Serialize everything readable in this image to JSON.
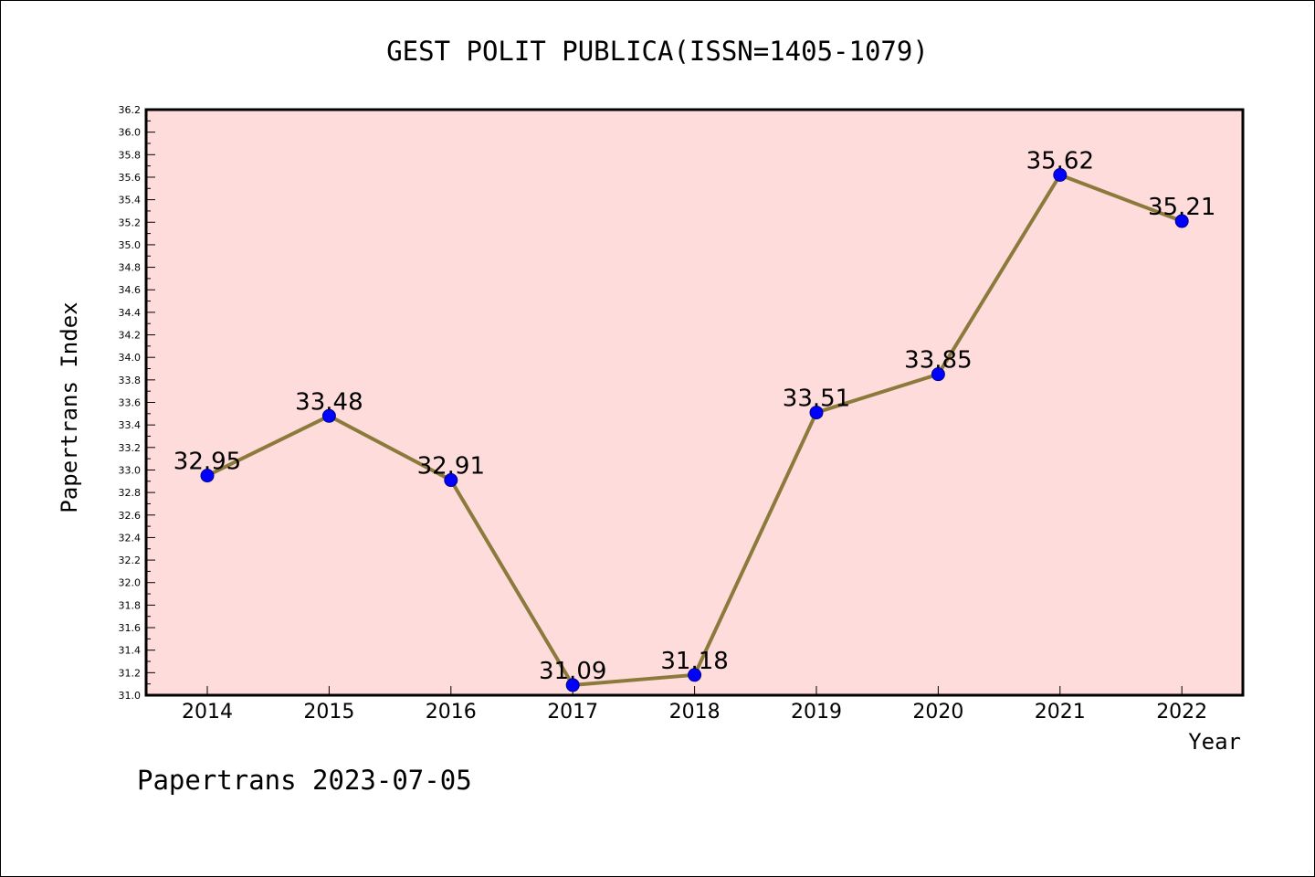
{
  "chart_data": {
    "type": "line",
    "title": "GEST POLIT PUBLICA(ISSN=1405-1079)",
    "xlabel": "Year",
    "ylabel": "Papertrans Index",
    "footer": "Papertrans 2023-07-05",
    "categories": [
      "2014",
      "2015",
      "2016",
      "2017",
      "2018",
      "2019",
      "2020",
      "2021",
      "2022"
    ],
    "series": [
      {
        "values": [
          32.95,
          33.48,
          32.91,
          31.09,
          31.18,
          33.51,
          33.85,
          35.62,
          35.21
        ],
        "labels": [
          "32.95",
          "33.48",
          "32.91",
          "31.09",
          "31.18",
          "33.51",
          "33.85",
          "35.62",
          "35.21"
        ]
      }
    ],
    "ylim": [
      31.0,
      36.2
    ],
    "yticks": [
      "31.0",
      "31.2",
      "31.4",
      "31.6",
      "31.8",
      "32.0",
      "32.2",
      "32.4",
      "32.6",
      "32.8",
      "33.0",
      "33.2",
      "33.4",
      "33.6",
      "33.8",
      "34.0",
      "34.2",
      "34.4",
      "34.6",
      "34.8",
      "35.0",
      "35.2",
      "35.4",
      "35.6",
      "35.8",
      "36.0",
      "36.2"
    ],
    "colors": {
      "plot_background": "#ffdcdc",
      "line": "#8b7a3c",
      "marker": "#0000ff"
    },
    "grid": false,
    "legend": "none"
  }
}
